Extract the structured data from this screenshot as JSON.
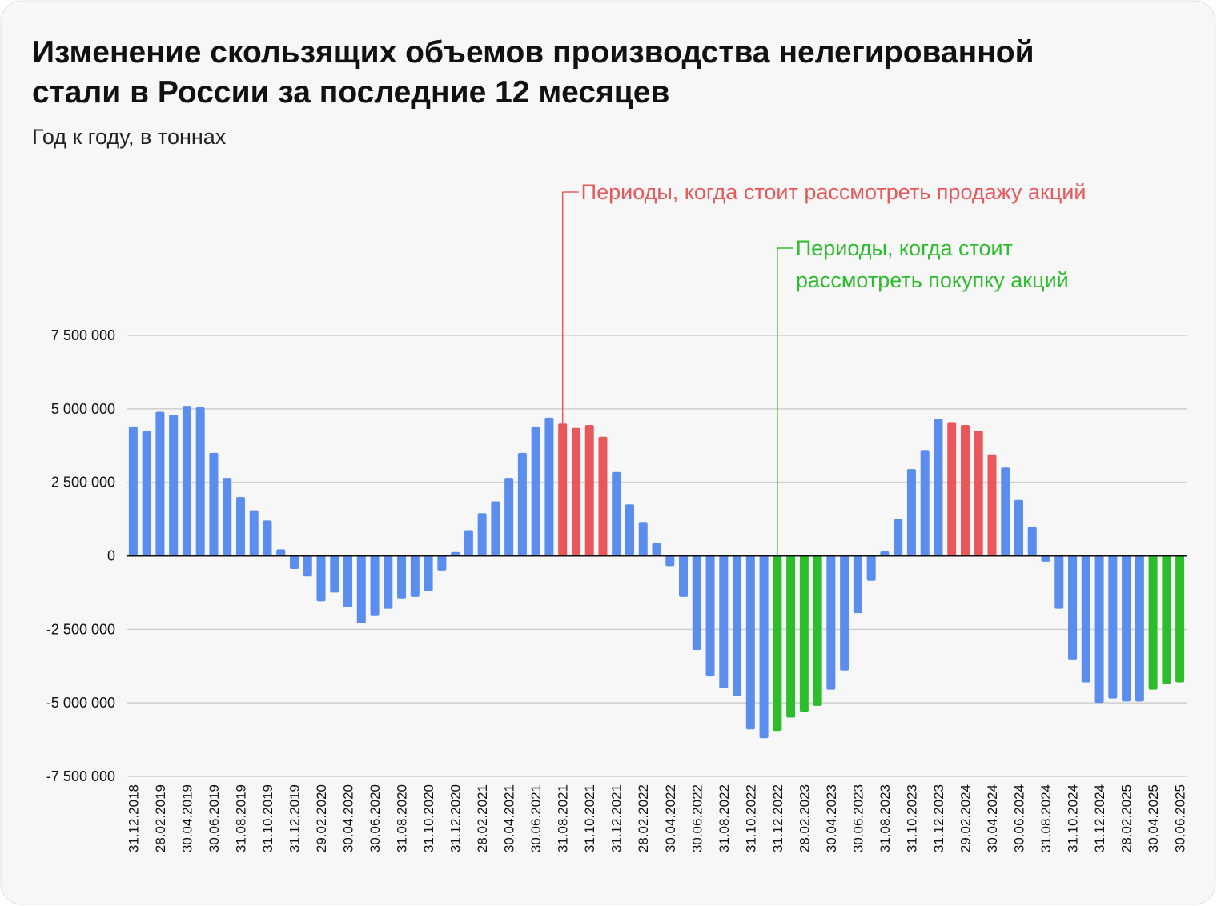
{
  "chart_data": {
    "type": "bar",
    "title": [
      "Изменение скользящих объемов производства нелегированной",
      "стали в России за последние 12 месяцев"
    ],
    "subtitle": "Год к году, в тоннах",
    "annotations": [
      {
        "lines": [
          "Периоды, когда стоит рассмотреть продажу акций"
        ],
        "color": "#e8585a"
      },
      {
        "lines": [
          "Периоды, когда стоит",
          "рассмотреть покупку акций"
        ],
        "color": "#2cbd2c"
      }
    ],
    "categories": [
      "31.12.2018",
      null,
      "28.02.2019",
      null,
      "30.04.2019",
      null,
      "30.06.2019",
      null,
      "31.08.2019",
      null,
      "31.10.2019",
      null,
      "31.12.2019",
      null,
      "29.02.2020",
      null,
      "30.04.2020",
      null,
      "30.06.2020",
      null,
      "31.08.2020",
      null,
      "31.10.2020",
      null,
      "31.12.2020",
      null,
      "28.02.2021",
      null,
      "30.04.2021",
      null,
      "30.06.2021",
      null,
      "31.08.2021",
      null,
      "31.10.2021",
      null,
      "31.12.2021",
      null,
      "28.02.2022",
      null,
      "30.04.2022",
      null,
      "30.06.2022",
      null,
      "31.08.2022",
      null,
      "31.10.2022",
      null,
      "31.12.2022",
      null,
      "28.02.2023",
      null,
      "30.04.2023",
      null,
      "30.06.2023",
      null,
      "31.08.2023",
      null,
      "31.10.2023",
      null,
      "31.12.2023",
      null,
      "29.02.2024",
      null,
      "30.04.2024",
      null,
      "30.06.2024",
      null,
      "31.08.2024",
      null,
      "31.10.2024",
      null,
      "31.12.2024",
      null,
      "28.02.2025",
      null,
      "30.04.2025",
      null,
      "30.06.2025"
    ],
    "values": [
      4400000,
      4250000,
      4900000,
      4800000,
      5100000,
      5050000,
      3500000,
      2650000,
      2000000,
      1550000,
      1200000,
      220000,
      -450000,
      -700000,
      -1550000,
      -1250000,
      -1750000,
      -2300000,
      -2050000,
      -1800000,
      -1450000,
      -1400000,
      -1200000,
      -500000,
      130000,
      870000,
      1450000,
      1850000,
      2650000,
      3500000,
      4400000,
      4700000,
      4500000,
      4350000,
      4450000,
      4050000,
      2850000,
      1750000,
      1150000,
      430000,
      -350000,
      -1400000,
      -3200000,
      -4100000,
      -4500000,
      -4750000,
      -5900000,
      -6200000,
      -5950000,
      -5500000,
      -5300000,
      -5100000,
      -4550000,
      -3900000,
      -1950000,
      -850000,
      150000,
      1250000,
      2950000,
      3600000,
      4650000,
      4550000,
      4450000,
      4250000,
      3450000,
      3000000,
      1900000,
      980000,
      -200000,
      -1800000,
      -3550000,
      -4300000,
      -5000000,
      -4850000,
      -4950000,
      -4950000,
      -4550000,
      -4350000,
      -4300000
    ],
    "colors": [
      "#5a8ded",
      "#5a8ded",
      "#5a8ded",
      "#5a8ded",
      "#5a8ded",
      "#5a8ded",
      "#5a8ded",
      "#5a8ded",
      "#5a8ded",
      "#5a8ded",
      "#5a8ded",
      "#5a8ded",
      "#5a8ded",
      "#5a8ded",
      "#5a8ded",
      "#5a8ded",
      "#5a8ded",
      "#5a8ded",
      "#5a8ded",
      "#5a8ded",
      "#5a8ded",
      "#5a8ded",
      "#5a8ded",
      "#5a8ded",
      "#5a8ded",
      "#5a8ded",
      "#5a8ded",
      "#5a8ded",
      "#5a8ded",
      "#5a8ded",
      "#5a8ded",
      "#5a8ded",
      "#e8585a",
      "#e8585a",
      "#e8585a",
      "#e8585a",
      "#5a8ded",
      "#5a8ded",
      "#5a8ded",
      "#5a8ded",
      "#5a8ded",
      "#5a8ded",
      "#5a8ded",
      "#5a8ded",
      "#5a8ded",
      "#5a8ded",
      "#5a8ded",
      "#5a8ded",
      "#2cbd2c",
      "#2cbd2c",
      "#2cbd2c",
      "#2cbd2c",
      "#5a8ded",
      "#5a8ded",
      "#5a8ded",
      "#5a8ded",
      "#5a8ded",
      "#5a8ded",
      "#5a8ded",
      "#5a8ded",
      "#5a8ded",
      "#e8585a",
      "#e8585a",
      "#e8585a",
      "#e8585a",
      "#5a8ded",
      "#5a8ded",
      "#5a8ded",
      "#5a8ded",
      "#5a8ded",
      "#5a8ded",
      "#5a8ded",
      "#5a8ded",
      "#5a8ded",
      "#5a8ded",
      "#5a8ded",
      "#2cbd2c",
      "#2cbd2c",
      "#2cbd2c"
    ],
    "ylim": [
      -7500000,
      7500000
    ],
    "yticks": [
      {
        "value": -7500000,
        "label": "-7 500 000"
      },
      {
        "value": -5000000,
        "label": "-5 000 000"
      },
      {
        "value": -2500000,
        "label": "-2 500 000"
      },
      0,
      {
        "value": 2500000,
        "label": "2 500 000"
      },
      {
        "value": 5000000,
        "label": "5 000 000"
      },
      {
        "value": 7500000,
        "label": "7 500 000"
      }
    ],
    "grid": true
  }
}
